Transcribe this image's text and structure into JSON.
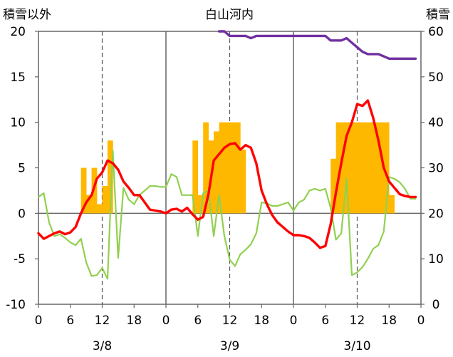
{
  "chart_data": {
    "type": "bar",
    "title": "白山河内",
    "left_axis_title": "積雪以外",
    "right_axis_title": "積雪",
    "y_left": {
      "range": [
        -10,
        20
      ],
      "ticks": [
        "20",
        "15",
        "10",
        "5",
        "0",
        "-5",
        "-10"
      ]
    },
    "y_right": {
      "range": [
        0,
        60
      ],
      "ticks": [
        "60",
        "50",
        "40",
        "30",
        "20",
        "10",
        "0"
      ]
    },
    "x_axis": {
      "hours": [
        0,
        72
      ],
      "tick_labels": [
        "0",
        "6",
        "12",
        "18",
        "0",
        "6",
        "12",
        "18",
        "0",
        "6",
        "12",
        "18",
        "0"
      ],
      "date_labels": [
        "3/8",
        "3/9",
        "3/10"
      ],
      "day_separators": [
        24,
        48
      ],
      "noon_dashed": [
        12,
        36,
        60
      ]
    },
    "colors": {
      "precip": "#FFB800",
      "temperature": "#FF0000",
      "wind": "#92D050",
      "snow_depth": "#7030A0"
    },
    "series": [
      {
        "key": "precip",
        "kind": "bar",
        "axis": "left",
        "unit_hours": 1,
        "values": [
          0,
          0,
          0,
          0,
          0,
          0,
          0,
          0,
          5,
          2,
          5,
          1,
          3,
          8,
          0,
          0,
          0,
          0,
          0,
          0,
          0,
          0,
          0,
          0,
          0,
          0,
          0,
          0,
          0,
          8,
          2,
          10,
          8,
          9,
          10,
          10,
          10,
          10,
          7,
          0,
          0,
          0,
          0,
          0,
          0,
          0,
          0,
          0,
          0,
          0,
          0,
          0,
          0,
          0,
          0,
          6,
          10,
          10,
          10,
          10,
          10,
          10,
          10,
          10,
          10,
          10,
          2,
          0,
          0,
          0,
          0,
          0
        ]
      },
      {
        "key": "temperature",
        "kind": "line",
        "axis": "left",
        "values": [
          -2.2,
          -2.8,
          -2.5,
          -2.2,
          -2.0,
          -2.3,
          -2.1,
          -1.5,
          0,
          1.2,
          2.0,
          3.8,
          4.5,
          5.8,
          5.5,
          4.8,
          3.5,
          2.8,
          2.0,
          2.0,
          1.2,
          0.4,
          0.3,
          0.2,
          0,
          0.4,
          0.5,
          0.2,
          0.6,
          -0.1,
          -0.7,
          -0.4,
          2.1,
          5.8,
          6.5,
          7.2,
          7.6,
          7.7,
          7.0,
          7.5,
          7.2,
          5.5,
          2.5,
          1.0,
          -0.2,
          -1.0,
          -1.5,
          -2.0,
          -2.4,
          -2.4,
          -2.5,
          -2.7,
          -3.2,
          -3.8,
          -3.6,
          -1.2,
          2.3,
          5.5,
          8.5,
          10.0,
          12.0,
          11.8,
          12.4,
          10.5,
          8.0,
          5.0,
          3.5,
          2.8,
          2.1,
          1.9,
          1.8,
          1.8
        ]
      },
      {
        "key": "wind",
        "kind": "line",
        "axis": "left",
        "values": [
          1.8,
          2.2,
          -1.0,
          -2.5,
          -2.3,
          -2.7,
          -3.2,
          -3.5,
          -2.8,
          -5.4,
          -6.9,
          -6.8,
          -6.0,
          -7.2,
          6.9,
          -4.9,
          2.8,
          1.5,
          1.0,
          2.0,
          2.5,
          3.0,
          3.0,
          2.9,
          2.9,
          4.3,
          4.0,
          2.0,
          2.0,
          2.0,
          -2.5,
          2.2,
          2.5,
          -2.5,
          2.0,
          -2.5,
          -5.1,
          -5.8,
          -4.5,
          -4.0,
          -3.4,
          -2.2,
          1.2,
          1.1,
          0.8,
          0.8,
          1.0,
          1.2,
          0.3,
          1.2,
          1.5,
          2.5,
          2.7,
          2.5,
          2.7,
          0.6,
          -2.9,
          -2.2,
          3.8,
          -6.8,
          -6.5,
          -5.9,
          -5.0,
          -3.9,
          -3.5,
          -2.0,
          4.0,
          3.8,
          3.4,
          2.7,
          1.6,
          1.6
        ]
      },
      {
        "key": "snow_depth",
        "kind": "line",
        "axis": "right",
        "x_start": 34,
        "values": [
          60,
          60,
          59,
          59,
          59,
          59,
          58.5,
          59,
          59,
          59,
          59,
          59,
          59,
          59,
          59,
          59,
          59,
          59,
          59,
          59,
          59,
          58,
          58,
          58,
          58.5,
          57.5,
          56.5,
          55.5,
          55,
          55,
          55,
          54.5,
          54,
          54,
          54,
          54,
          54,
          54
        ]
      }
    ]
  }
}
